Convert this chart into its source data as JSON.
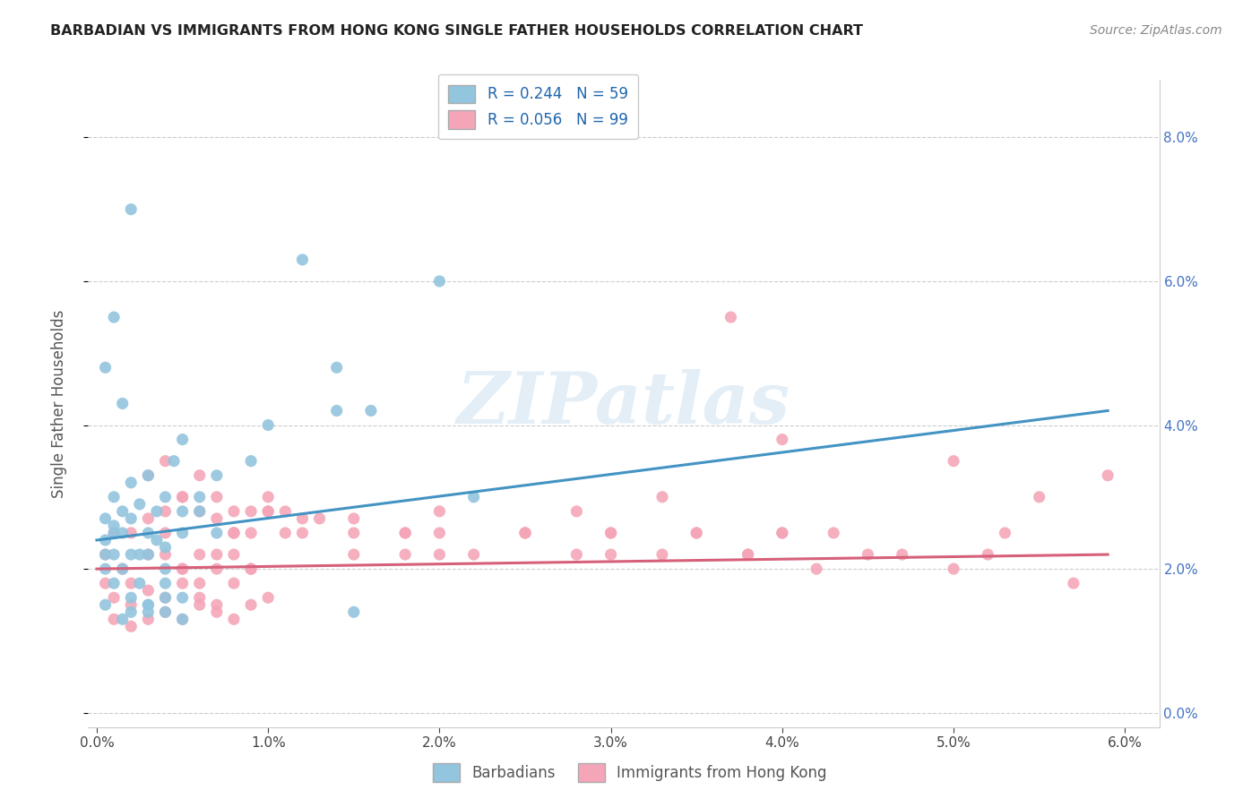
{
  "title": "BARBADIAN VS IMMIGRANTS FROM HONG KONG SINGLE FATHER HOUSEHOLDS CORRELATION CHART",
  "source": "Source: ZipAtlas.com",
  "xlabel_barbadians": "Barbadians",
  "xlabel_hk": "Immigrants from Hong Kong",
  "ylabel": "Single Father Households",
  "blue_R": 0.244,
  "blue_N": 59,
  "pink_R": 0.056,
  "pink_N": 99,
  "blue_color": "#92c5de",
  "pink_color": "#f4a6b8",
  "blue_line_color": "#4393c3",
  "pink_line_color": "#d6607a",
  "watermark": "ZIPatlas",
  "blue_line_x0": 0.0,
  "blue_line_x1": 0.059,
  "blue_line_y0": 0.024,
  "blue_line_y1": 0.042,
  "pink_line_x0": 0.0,
  "pink_line_x1": 0.059,
  "pink_line_y0": 0.02,
  "pink_line_y1": 0.022,
  "x_max": 0.062,
  "y_max": 0.088,
  "y_ticks": [
    0.0,
    0.02,
    0.04,
    0.06,
    0.08
  ],
  "x_ticks": [
    0.0,
    0.01,
    0.02,
    0.03,
    0.04,
    0.05,
    0.06
  ],
  "blue_pts_x": [
    0.0005,
    0.001,
    0.0015,
    0.002,
    0.0025,
    0.003,
    0.0035,
    0.004,
    0.0045,
    0.005,
    0.0005,
    0.001,
    0.0015,
    0.002,
    0.0025,
    0.003,
    0.0035,
    0.004,
    0.005,
    0.006,
    0.0005,
    0.001,
    0.0015,
    0.002,
    0.0025,
    0.003,
    0.004,
    0.005,
    0.006,
    0.007,
    0.0005,
    0.001,
    0.0015,
    0.002,
    0.003,
    0.004,
    0.005,
    0.007,
    0.009,
    0.01,
    0.0005,
    0.001,
    0.0015,
    0.002,
    0.003,
    0.004,
    0.005,
    0.012,
    0.014,
    0.015,
    0.0005,
    0.001,
    0.002,
    0.003,
    0.004,
    0.014,
    0.016,
    0.02,
    0.022
  ],
  "blue_pts_y": [
    0.027,
    0.03,
    0.028,
    0.032,
    0.029,
    0.033,
    0.028,
    0.03,
    0.035,
    0.038,
    0.024,
    0.026,
    0.025,
    0.027,
    0.022,
    0.025,
    0.024,
    0.023,
    0.028,
    0.03,
    0.022,
    0.025,
    0.02,
    0.022,
    0.018,
    0.022,
    0.02,
    0.025,
    0.028,
    0.033,
    0.015,
    0.018,
    0.013,
    0.016,
    0.015,
    0.018,
    0.016,
    0.025,
    0.035,
    0.04,
    0.048,
    0.055,
    0.043,
    0.07,
    0.015,
    0.014,
    0.013,
    0.063,
    0.048,
    0.014,
    0.02,
    0.022,
    0.014,
    0.014,
    0.016,
    0.042,
    0.042,
    0.06,
    0.03
  ],
  "pink_pts_x": [
    0.0005,
    0.001,
    0.0015,
    0.002,
    0.003,
    0.004,
    0.005,
    0.006,
    0.007,
    0.008,
    0.0005,
    0.001,
    0.002,
    0.003,
    0.004,
    0.005,
    0.006,
    0.007,
    0.008,
    0.009,
    0.001,
    0.002,
    0.003,
    0.004,
    0.005,
    0.006,
    0.007,
    0.008,
    0.009,
    0.01,
    0.002,
    0.003,
    0.004,
    0.005,
    0.006,
    0.007,
    0.008,
    0.009,
    0.01,
    0.011,
    0.003,
    0.004,
    0.005,
    0.006,
    0.007,
    0.008,
    0.009,
    0.01,
    0.011,
    0.012,
    0.004,
    0.005,
    0.006,
    0.007,
    0.008,
    0.009,
    0.012,
    0.015,
    0.018,
    0.02,
    0.008,
    0.01,
    0.013,
    0.015,
    0.018,
    0.02,
    0.022,
    0.025,
    0.028,
    0.03,
    0.015,
    0.018,
    0.02,
    0.025,
    0.028,
    0.03,
    0.033,
    0.035,
    0.038,
    0.04,
    0.025,
    0.03,
    0.033,
    0.035,
    0.038,
    0.04,
    0.042,
    0.045,
    0.05,
    0.052,
    0.037,
    0.04,
    0.043,
    0.047,
    0.05,
    0.053,
    0.055,
    0.057,
    0.059
  ],
  "pink_pts_y": [
    0.022,
    0.025,
    0.02,
    0.018,
    0.022,
    0.025,
    0.02,
    0.018,
    0.022,
    0.025,
    0.018,
    0.016,
    0.015,
    0.017,
    0.016,
    0.018,
    0.016,
    0.015,
    0.018,
    0.02,
    0.013,
    0.012,
    0.013,
    0.014,
    0.013,
    0.015,
    0.014,
    0.013,
    0.015,
    0.016,
    0.025,
    0.027,
    0.028,
    0.03,
    0.028,
    0.027,
    0.025,
    0.028,
    0.03,
    0.028,
    0.033,
    0.035,
    0.03,
    0.033,
    0.03,
    0.028,
    0.025,
    0.028,
    0.025,
    0.027,
    0.022,
    0.02,
    0.022,
    0.02,
    0.022,
    0.02,
    0.025,
    0.027,
    0.025,
    0.022,
    0.025,
    0.028,
    0.027,
    0.025,
    0.022,
    0.025,
    0.022,
    0.025,
    0.028,
    0.025,
    0.022,
    0.025,
    0.028,
    0.025,
    0.022,
    0.025,
    0.022,
    0.025,
    0.022,
    0.025,
    0.025,
    0.022,
    0.03,
    0.025,
    0.022,
    0.025,
    0.02,
    0.022,
    0.02,
    0.022,
    0.055,
    0.038,
    0.025,
    0.022,
    0.035,
    0.025,
    0.03,
    0.018,
    0.033
  ]
}
